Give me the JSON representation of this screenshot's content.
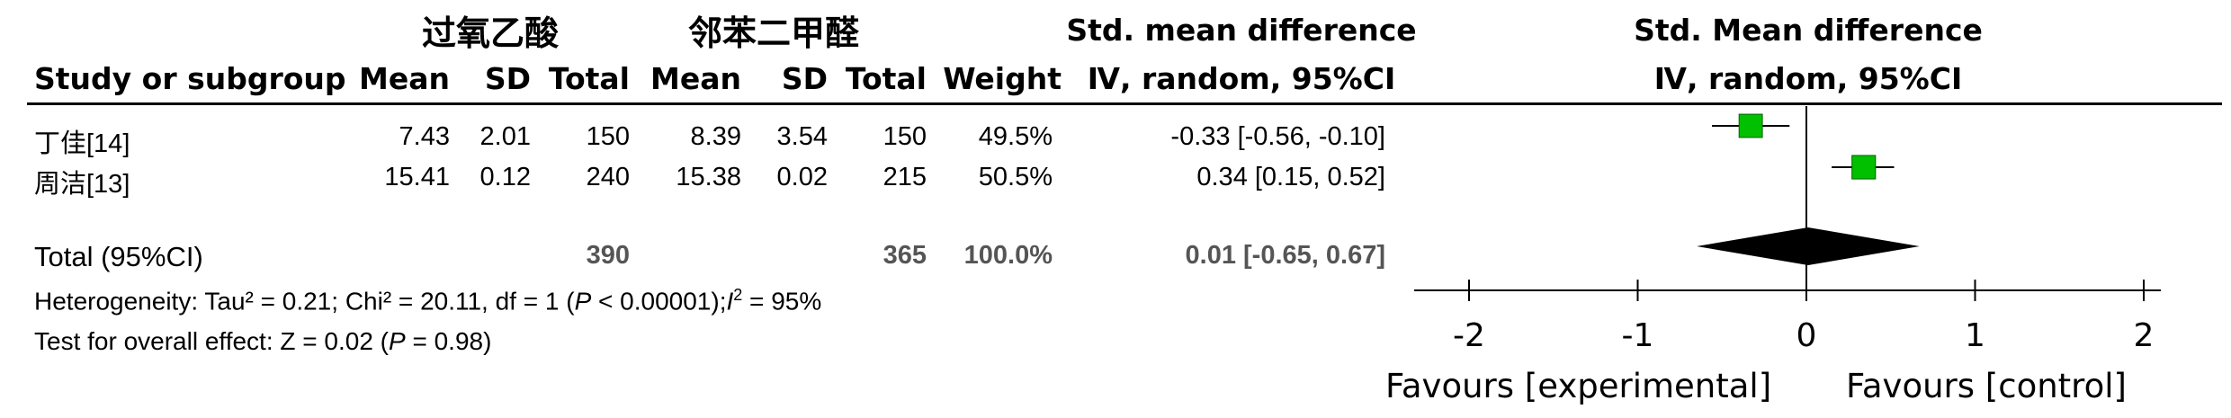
{
  "group_headers": {
    "experimental": "过氧乙酸",
    "control": "邻苯二甲醛"
  },
  "columns": {
    "study": "Study or subgroup",
    "mean1": "Mean",
    "sd1": "SD",
    "total1": "Total",
    "mean2": "Mean",
    "sd2": "SD",
    "total2": "Total",
    "weight": "Weight",
    "effect_title": "Std. mean difference",
    "effect_method": "Ⅳ, random, 95%CI",
    "plot_title": "Std. Mean difference",
    "plot_method": "Ⅳ, random, 95%CI"
  },
  "rows": [
    {
      "study": "丁佳[14]",
      "mean1": "7.43",
      "sd1": "2.01",
      "total1": "150",
      "mean2": "8.39",
      "sd2": "3.54",
      "total2": "150",
      "weight": "49.5%",
      "ci_text": "-0.33 [-0.56, -0.10]"
    },
    {
      "study": "周洁[13]",
      "mean1": "15.41",
      "sd1": "0.12",
      "total1": "240",
      "mean2": "15.38",
      "sd2": "0.02",
      "total2": "215",
      "weight": "50.5%",
      "ci_text": "0.34 [0.15, 0.52]"
    }
  ],
  "total_row": {
    "label": "Total (95%CI)",
    "total1": "390",
    "total2": "365",
    "weight": "100.0%",
    "ci_text": "0.01 [-0.65, 0.67]"
  },
  "heterogeneity": {
    "prefix": "Heterogeneity: Tau² = 0.21; Chi² = 20.11, df = 1 (",
    "p_symbol": "P",
    "p_value": " < 0.00001);",
    "i_symbol": "I",
    "i_value": " = 95%"
  },
  "overall_effect": {
    "prefix": "Test for overall effect: Z = 0.02 (",
    "p_symbol": "P",
    "suffix": " = 0.98)"
  },
  "favours": {
    "left": "Favours [experimental]",
    "right": "Favours [control]"
  },
  "colors": {
    "marker": "#00c000",
    "diamond": "#000000",
    "axis": "#000000"
  },
  "chart_data": {
    "type": "forest",
    "xlim": [
      -2,
      2
    ],
    "ticks": [
      -2,
      -1,
      0,
      1,
      2
    ],
    "tick_labels": [
      "-2",
      "-1",
      "0",
      "1",
      "2"
    ],
    "studies": [
      {
        "name": "丁佳[14]",
        "smd": -0.33,
        "lower": -0.56,
        "upper": -0.1,
        "weight": 49.5
      },
      {
        "name": "周洁[13]",
        "smd": 0.34,
        "lower": 0.15,
        "upper": 0.52,
        "weight": 50.5
      }
    ],
    "pooled": {
      "smd": 0.01,
      "lower": -0.65,
      "upper": 0.67
    }
  }
}
